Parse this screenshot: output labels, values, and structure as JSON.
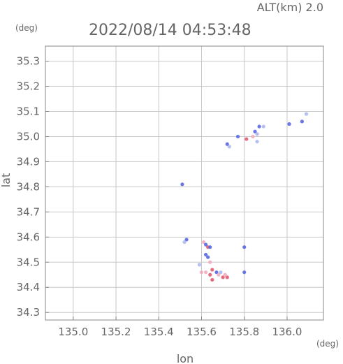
{
  "header": {
    "alt_label": "ALT(km) 2.0",
    "timestamp": "2022/08/14 04:53:48"
  },
  "chart_data": {
    "type": "scatter",
    "title": "2022/08/14 04:53:48",
    "subtitle": "ALT(km) 2.0",
    "xlabel": "lon",
    "ylabel": "lat",
    "x_unit": "(deg)",
    "y_unit": "(deg)",
    "xlim": [
      134.87,
      136.17
    ],
    "ylim": [
      34.27,
      35.36
    ],
    "x_ticks": [
      135.0,
      135.2,
      135.4,
      135.6,
      135.8,
      136.0
    ],
    "y_ticks": [
      34.3,
      34.4,
      34.5,
      34.6,
      34.7,
      34.8,
      34.9,
      35.0,
      35.1,
      35.2,
      35.3
    ],
    "x_tick_labels": [
      "135.0",
      "135.2",
      "135.4",
      "135.6",
      "135.8",
      "136.0"
    ],
    "y_tick_labels": [
      "34.3",
      "34.4",
      "34.5",
      "34.6",
      "34.7",
      "34.8",
      "34.9",
      "35.0",
      "35.1",
      "35.2",
      "35.3"
    ],
    "grid": true,
    "colors": {
      "blue": "#4f5fe0",
      "lightblue": "#a8b4f0",
      "red": "#e2506a",
      "pink": "#f0a8b8"
    },
    "points": [
      {
        "x": 136.09,
        "y": 35.09,
        "c": "lightblue"
      },
      {
        "x": 136.07,
        "y": 35.06,
        "c": "blue"
      },
      {
        "x": 136.01,
        "y": 35.05,
        "c": "blue"
      },
      {
        "x": 135.87,
        "y": 35.04,
        "c": "blue"
      },
      {
        "x": 135.89,
        "y": 35.04,
        "c": "lightblue"
      },
      {
        "x": 135.85,
        "y": 35.02,
        "c": "blue"
      },
      {
        "x": 135.86,
        "y": 35.01,
        "c": "lightblue"
      },
      {
        "x": 135.77,
        "y": 35.0,
        "c": "blue"
      },
      {
        "x": 135.84,
        "y": 35.0,
        "c": "pink"
      },
      {
        "x": 135.81,
        "y": 34.99,
        "c": "red"
      },
      {
        "x": 135.86,
        "y": 34.98,
        "c": "lightblue"
      },
      {
        "x": 135.72,
        "y": 34.97,
        "c": "blue"
      },
      {
        "x": 135.73,
        "y": 34.96,
        "c": "lightblue"
      },
      {
        "x": 135.51,
        "y": 34.81,
        "c": "blue"
      },
      {
        "x": 135.53,
        "y": 34.59,
        "c": "blue"
      },
      {
        "x": 135.52,
        "y": 34.58,
        "c": "lightblue"
      },
      {
        "x": 135.61,
        "y": 34.58,
        "c": "pink"
      },
      {
        "x": 135.62,
        "y": 34.57,
        "c": "blue"
      },
      {
        "x": 135.63,
        "y": 34.56,
        "c": "red"
      },
      {
        "x": 135.64,
        "y": 34.56,
        "c": "blue"
      },
      {
        "x": 135.8,
        "y": 34.56,
        "c": "blue"
      },
      {
        "x": 135.62,
        "y": 34.53,
        "c": "blue"
      },
      {
        "x": 135.63,
        "y": 34.52,
        "c": "blue"
      },
      {
        "x": 135.64,
        "y": 34.5,
        "c": "pink"
      },
      {
        "x": 135.59,
        "y": 34.49,
        "c": "lightblue"
      },
      {
        "x": 135.65,
        "y": 34.47,
        "c": "red"
      },
      {
        "x": 135.6,
        "y": 34.46,
        "c": "pink"
      },
      {
        "x": 135.62,
        "y": 34.46,
        "c": "pink"
      },
      {
        "x": 135.64,
        "y": 34.45,
        "c": "red"
      },
      {
        "x": 135.67,
        "y": 34.46,
        "c": "blue"
      },
      {
        "x": 135.68,
        "y": 34.45,
        "c": "pink"
      },
      {
        "x": 135.8,
        "y": 34.46,
        "c": "blue"
      },
      {
        "x": 135.7,
        "y": 34.44,
        "c": "red"
      },
      {
        "x": 135.72,
        "y": 34.44,
        "c": "red"
      },
      {
        "x": 135.65,
        "y": 34.43,
        "c": "red"
      },
      {
        "x": 135.71,
        "y": 34.45,
        "c": "pink"
      },
      {
        "x": 135.69,
        "y": 34.46,
        "c": "lightblue"
      }
    ]
  }
}
